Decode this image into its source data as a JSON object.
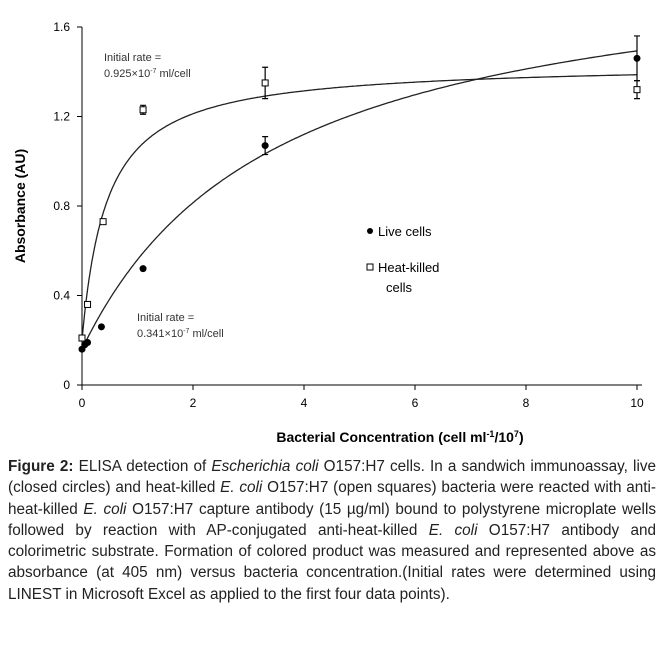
{
  "chart_data": {
    "type": "scatter",
    "xlabel": "Bacterial Concentration (cell ml",
    "xlabel_sup1": "-1",
    "xlabel_mid": "/10",
    "xlabel_sup2": "7",
    "xlabel_end": ")",
    "ylabel": "Absorbance (AU)",
    "xlim": [
      0,
      10
    ],
    "ylim": [
      0,
      1.6
    ],
    "xticks": [
      "0",
      "2",
      "4",
      "6",
      "8",
      "10"
    ],
    "yticks": [
      "0",
      "0.4",
      "0.8",
      "1.2",
      "1.6"
    ],
    "grid": false,
    "legend_position": "center-right",
    "series": [
      {
        "name": "Live cells",
        "marker": "filled-circle",
        "x": [
          0,
          0.05,
          0.1,
          0.35,
          1.1,
          3.3,
          10
        ],
        "y": [
          0.16,
          0.18,
          0.19,
          0.26,
          0.52,
          1.07,
          1.46
        ],
        "err": [
          0,
          0,
          0,
          0,
          0,
          0.04,
          0.1
        ],
        "fit": {
          "y0": 0.16,
          "vmax": 1.8,
          "k": 3.5
        }
      },
      {
        "name": "Heat-killed cells",
        "marker": "open-square",
        "x": [
          0,
          0.1,
          0.38,
          1.1,
          3.3,
          10
        ],
        "y": [
          0.21,
          0.36,
          0.73,
          1.23,
          1.35,
          1.32
        ],
        "err": [
          0,
          0,
          0,
          0.02,
          0.07,
          0.04
        ],
        "fit": {
          "y0": 0.2,
          "vmax": 1.24,
          "k": 0.45
        }
      }
    ],
    "legend": [
      "Live cells",
      "Heat-killed",
      "cells"
    ],
    "annotations": {
      "heat": {
        "line1": "Initial rate =",
        "line2": "0.925×10",
        "sup": "-7",
        "unit": " ml/cell"
      },
      "live": {
        "line1": "Initial rate =",
        "line2": "0.341×10",
        "sup": "-7",
        "unit": " ml/cell"
      }
    }
  },
  "caption": {
    "label": "Figure 2:",
    "s1": " ELISA detection of ",
    "i1": "Escherichia coli",
    "s2": " O157:H7 cells. In a sandwich immunoassay, live (closed circles) and heat-killed ",
    "i2": "E. coli",
    "s3": " O157:H7 (open squares) bacteria were reacted with anti-heat-killed ",
    "i3": "E. coli",
    "s4": " O157:H7 capture antibody (15 µg/ml) bound to polystyrene microplate wells followed by reaction with AP-conjugated anti-heat-killed ",
    "i4": "E. coli",
    "s5": " O157:H7 antibody and colorimetric substrate. Formation of colored product was measured and represented above as absorbance (at 405 nm) versus bacteria concentration.(Initial rates were determined using LINEST in Microsoft Excel as applied to the first four data points)."
  }
}
